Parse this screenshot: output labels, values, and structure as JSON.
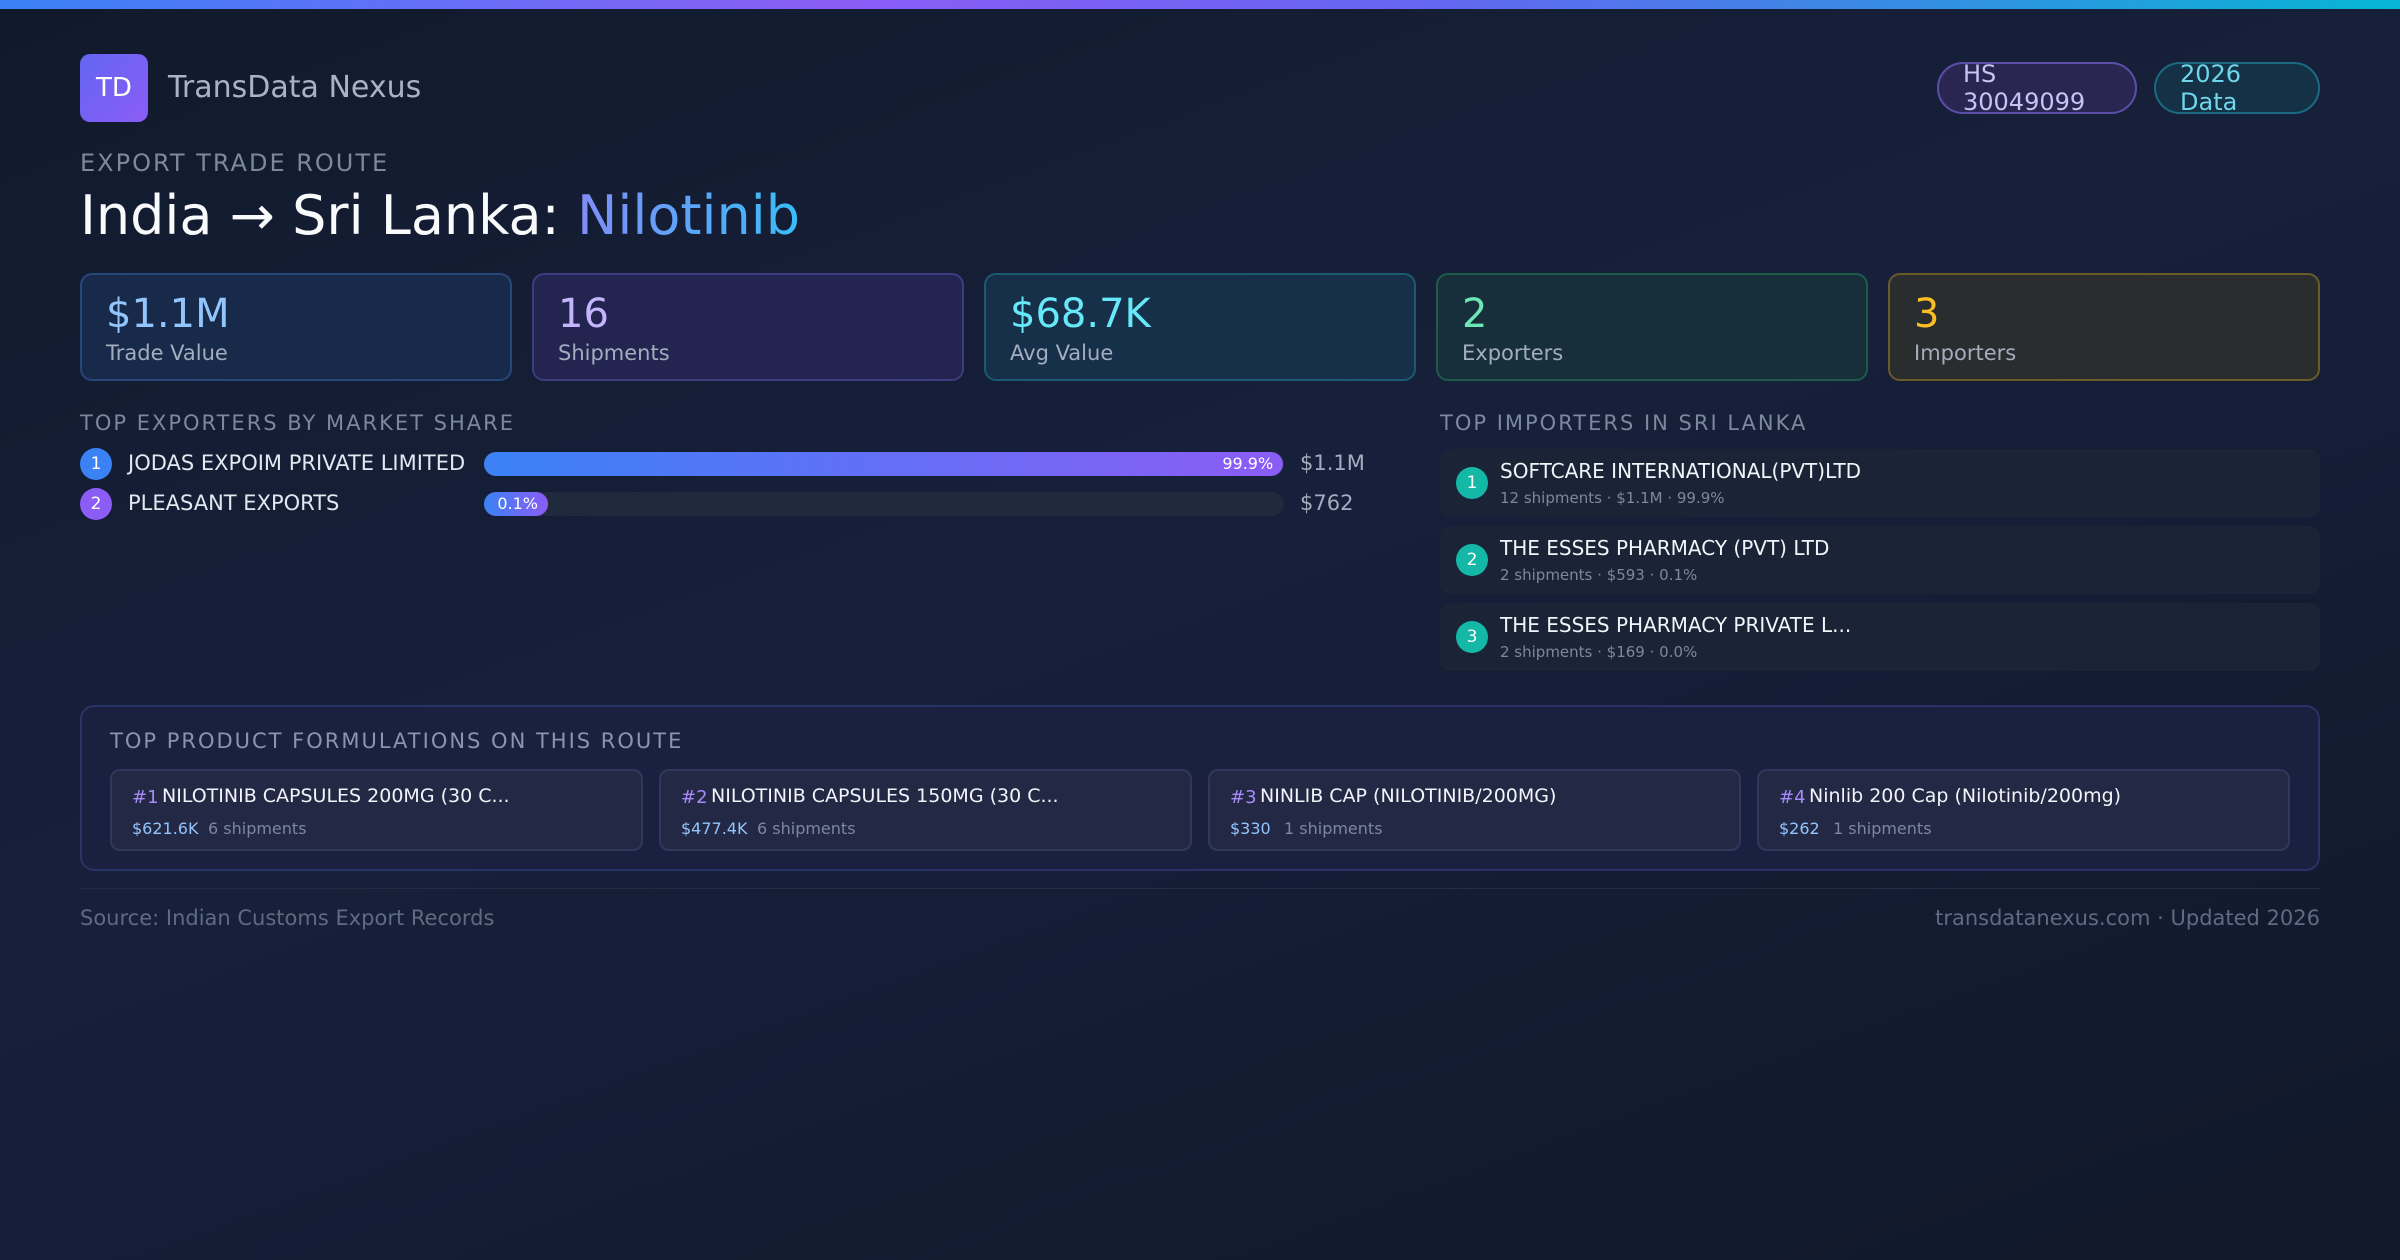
{
  "header": {
    "logo": "TD",
    "brand": "TransData Nexus",
    "hs_code": "HS 30049099",
    "data_year": "2026 Data"
  },
  "hero": {
    "kicker": "EXPORT TRADE ROUTE",
    "route": "India → Sri Lanka:",
    "product": "Nilotinib"
  },
  "stats": [
    {
      "value": "$1.1M",
      "label": "Trade Value"
    },
    {
      "value": "16",
      "label": "Shipments"
    },
    {
      "value": "$68.7K",
      "label": "Avg Value"
    },
    {
      "value": "2",
      "label": "Exporters"
    },
    {
      "value": "3",
      "label": "Importers"
    }
  ],
  "exporters": {
    "title": "TOP EXPORTERS BY MARKET SHARE",
    "items": [
      {
        "rank": "1",
        "name": "JODAS EXPOIM PRIVATE LIMITED",
        "share": 99.9,
        "share_label": "99.9%",
        "value": "$1.1M"
      },
      {
        "rank": "2",
        "name": "PLEASANT EXPORTS",
        "share": 0.1,
        "share_label": "0.1%",
        "value": "$762"
      }
    ]
  },
  "importers": {
    "title": "TOP IMPORTERS IN SRI LANKA",
    "items": [
      {
        "rank": "1",
        "name": "SOFTCARE INTERNATIONAL(PVT)LTD",
        "meta": "12 shipments · $1.1M · 99.9%"
      },
      {
        "rank": "2",
        "name": "THE ESSES PHARMACY (PVT) LTD",
        "meta": "2 shipments · $593 · 0.1%"
      },
      {
        "rank": "3",
        "name": "THE ESSES PHARMACY PRIVATE L...",
        "meta": "2 shipments · $169 · 0.0%"
      }
    ]
  },
  "formulations": {
    "title": "TOP PRODUCT FORMULATIONS ON THIS ROUTE",
    "items": [
      {
        "rank": "#1",
        "name": "NILOTINIB CAPSULES 200MG (30 C...",
        "value": "$621.6K",
        "shipments": "6 shipments"
      },
      {
        "rank": "#2",
        "name": "NILOTINIB CAPSULES 150MG (30 C...",
        "value": "$477.4K",
        "shipments": "6 shipments"
      },
      {
        "rank": "#3",
        "name": "NINLIB CAP (NILOTINIB/200MG)",
        "value": "$330",
        "shipments": "1 shipments"
      },
      {
        "rank": "#4",
        "name": "Ninlib 200 Cap (Nilotinib/200mg)",
        "value": "$262",
        "shipments": "1 shipments"
      }
    ]
  },
  "footer": {
    "source": "Source: Indian Customs Export Records",
    "site": "transdatanexus.com · Updated 2026"
  },
  "colors": {
    "accent_blue": "#3b82f6",
    "accent_purple": "#8b5cf6",
    "accent_cyan": "#06b6d4",
    "teal": "#14b8a6"
  }
}
